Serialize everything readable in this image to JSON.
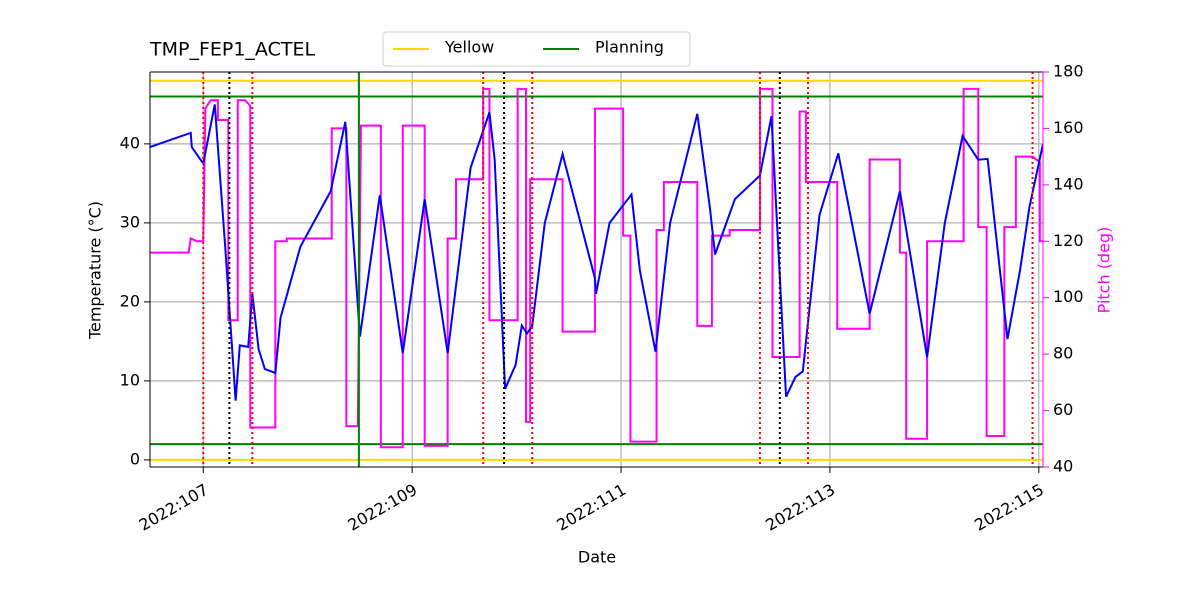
{
  "chart_data": {
    "type": "line",
    "title": "TMP_FEP1_ACTEL",
    "xlabel": "Date",
    "ylabel": "Temperature (°C)",
    "y2label": "Pitch (deg)",
    "y2color": "#ff00ff",
    "xlim": [
      106.49,
      115.04
    ],
    "ylim": [
      -0.9,
      49.1
    ],
    "y2lim": [
      40,
      180
    ],
    "xticks": [
      {
        "value": 107,
        "label": "2022:107"
      },
      {
        "value": 109,
        "label": "2022:109"
      },
      {
        "value": 111,
        "label": "2022:111"
      },
      {
        "value": 113,
        "label": "2022:113"
      },
      {
        "value": 115,
        "label": "2022:115"
      }
    ],
    "yticks": [
      0,
      10,
      20,
      30,
      40
    ],
    "y2ticks": [
      40,
      60,
      80,
      100,
      120,
      140,
      160,
      180
    ],
    "grid": true,
    "legend": "top",
    "series": [
      {
        "color": "#0000ff",
        "x": [
          106.49,
          106.88,
          106.89,
          107.0,
          107.11,
          107.21,
          107.31,
          107.35,
          107.43,
          107.47,
          107.53,
          107.59,
          107.69,
          107.74,
          107.93,
          108.22,
          108.36,
          108.5,
          108.69,
          108.91,
          109.12,
          109.34,
          109.56,
          109.74,
          109.79,
          109.89,
          109.99,
          110.05,
          110.1,
          110.15,
          110.27,
          110.44,
          110.75,
          110.76,
          110.89,
          111.1,
          111.18,
          111.33,
          111.47,
          111.73,
          111.85,
          111.9,
          112.09,
          112.33,
          112.44,
          112.58,
          112.67,
          112.74,
          112.9,
          113.08,
          113.38,
          113.67,
          113.72,
          113.93,
          114.1,
          114.27,
          114.42,
          114.51,
          114.7,
          114.82,
          114.91,
          115.04
        ],
        "values": [
          39.6,
          41.4,
          39.6,
          37.5,
          45,
          27,
          7.5,
          14.5,
          14.3,
          21,
          14,
          11.5,
          11,
          18,
          27,
          34,
          42.8,
          15.6,
          33.5,
          13.5,
          33,
          13.5,
          37,
          44,
          38,
          9,
          12,
          17,
          16,
          17,
          30,
          38.7,
          23,
          21,
          30,
          33.6,
          24,
          13.7,
          30,
          43.8,
          32,
          26,
          33,
          36,
          43.5,
          8,
          10.5,
          11.2,
          31,
          38.8,
          18.5,
          34,
          30,
          13,
          30,
          41,
          38,
          38.1,
          15.3,
          24,
          32,
          40
        ]
      },
      {
        "color": "#ff00ff",
        "axis": "y2",
        "x": [
          106.49,
          106.86,
          106.88,
          106.94,
          107.0,
          107.02,
          107.07,
          107.14,
          107.14,
          107.24,
          107.24,
          107.33,
          107.33,
          107.4,
          107.45,
          107.45,
          107.69,
          107.69,
          107.8,
          107.8,
          108.23,
          108.23,
          108.37,
          108.37,
          108.48,
          108.51,
          108.7,
          108.7,
          108.91,
          108.91,
          109.12,
          109.12,
          109.34,
          109.34,
          109.42,
          109.42,
          109.68,
          109.68,
          109.74,
          109.74,
          110.01,
          110.01,
          110.09,
          110.09,
          110.13,
          110.13,
          110.44,
          110.44,
          110.75,
          110.75,
          111.02,
          111.02,
          111.09,
          111.09,
          111.34,
          111.34,
          111.41,
          111.41,
          111.73,
          111.73,
          111.87,
          111.87,
          112.04,
          112.04,
          112.33,
          112.33,
          112.45,
          112.45,
          112.71,
          112.71,
          112.77,
          112.77,
          113.07,
          113.07,
          113.38,
          113.38,
          113.67,
          113.67,
          113.73,
          113.73,
          113.93,
          113.93,
          114.28,
          114.28,
          114.42,
          114.42,
          114.5,
          114.5,
          114.67,
          114.67,
          114.78,
          114.78,
          114.94,
          115.01,
          115.01,
          115.04
        ],
        "values": [
          116,
          116,
          121,
          120,
          120,
          167,
          170,
          170,
          163,
          163,
          92,
          92,
          170,
          170,
          168,
          54,
          54,
          120,
          120,
          121,
          121,
          160,
          160,
          54.5,
          54.5,
          161,
          161,
          47,
          47,
          161,
          161,
          47.5,
          47.5,
          121,
          121,
          142,
          142,
          174,
          174,
          92,
          92,
          174,
          174,
          56,
          56,
          142,
          142,
          88,
          88,
          167,
          167,
          122,
          122,
          49,
          49,
          124,
          124,
          141,
          141,
          90,
          90,
          122,
          122,
          124,
          124,
          174,
          174,
          79,
          79,
          166,
          166,
          141,
          141,
          89,
          89,
          149,
          149,
          116,
          116,
          50,
          50,
          120,
          120,
          174,
          174,
          125,
          125,
          51,
          51,
          125,
          125,
          150,
          150,
          148,
          120,
          120
        ]
      }
    ],
    "hlines": [
      {
        "name": "Yellow",
        "color": "#ffd700",
        "values": [
          48,
          0
        ]
      },
      {
        "name": "Planning",
        "color": "#008000",
        "values": [
          46,
          2
        ]
      }
    ],
    "vlines": [
      {
        "color": "#ff0000",
        "dashed": true,
        "x": [
          107.0,
          107.47,
          109.68,
          110.15,
          112.33,
          112.79,
          114.94
        ]
      },
      {
        "color": "#000000",
        "dashed": true,
        "x": [
          107.25,
          109.88,
          112.52
        ]
      },
      {
        "color": "#008000",
        "dashed": false,
        "x": [
          108.49
        ]
      }
    ]
  }
}
